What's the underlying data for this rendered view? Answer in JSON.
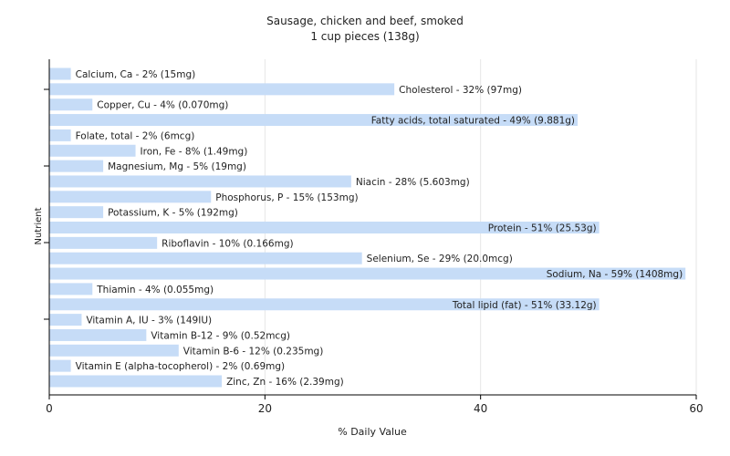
{
  "chart_data": {
    "type": "bar",
    "orientation": "horizontal",
    "title": "Sausage, chicken and beef, smoked",
    "subtitle": "1 cup pieces (138g)",
    "xlabel": "% Daily Value",
    "ylabel": "Nutrient",
    "xlim": [
      0,
      60
    ],
    "xticks": [
      0,
      20,
      40,
      60
    ],
    "grid": true,
    "legend": "none",
    "bar_color": "#c6dcf7",
    "categories": [
      "Calcium, Ca",
      "Cholesterol",
      "Copper, Cu",
      "Fatty acids, total saturated",
      "Folate, total",
      "Iron, Fe",
      "Magnesium, Mg",
      "Niacin",
      "Phosphorus, P",
      "Potassium, K",
      "Protein",
      "Riboflavin",
      "Selenium, Se",
      "Sodium, Na",
      "Thiamin",
      "Total lipid (fat)",
      "Vitamin A, IU",
      "Vitamin B-12",
      "Vitamin B-6",
      "Vitamin E (alpha-tocopherol)",
      "Zinc, Zn"
    ],
    "values": [
      2,
      32,
      4,
      49,
      2,
      8,
      5,
      28,
      15,
      5,
      51,
      10,
      29,
      59,
      4,
      51,
      3,
      9,
      12,
      2,
      16
    ],
    "labels": [
      "Calcium, Ca - 2% (15mg)",
      "Cholesterol - 32% (97mg)",
      "Copper, Cu - 4% (0.070mg)",
      "Fatty acids, total saturated - 49% (9.881g)",
      "Folate, total - 2% (6mcg)",
      "Iron, Fe - 8% (1.49mg)",
      "Magnesium, Mg - 5% (19mg)",
      "Niacin - 28% (5.603mg)",
      "Phosphorus, P - 15% (153mg)",
      "Potassium, K - 5% (192mg)",
      "Protein - 51% (25.53g)",
      "Riboflavin - 10% (0.166mg)",
      "Selenium, Se - 29% (20.0mcg)",
      "Sodium, Na - 59% (1408mg)",
      "Thiamin - 4% (0.055mg)",
      "Total lipid (fat) - 51% (33.12g)",
      "Vitamin A, IU - 3% (149IU)",
      "Vitamin B-12 - 9% (0.52mcg)",
      "Vitamin B-6 - 12% (0.235mg)",
      "Vitamin E (alpha-tocopherol) - 2% (0.69mg)",
      "Zinc, Zn - 16% (2.39mg)"
    ]
  }
}
